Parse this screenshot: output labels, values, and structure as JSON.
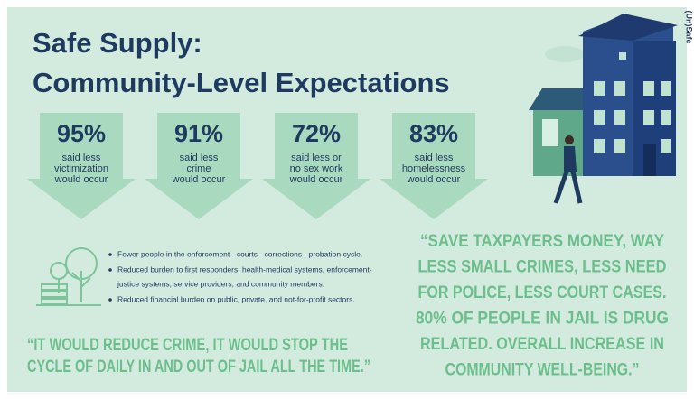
{
  "header": {
    "title": [
      "Safe Supply:",
      "Community-Level Expectations"
    ],
    "side_label": "(Un)Safe"
  },
  "stats": [
    {
      "figure": "95%",
      "caption": [
        "said less",
        "victimization",
        "would occur"
      ]
    },
    {
      "figure": "91%",
      "caption": [
        "said less",
        "crime",
        "would occur"
      ]
    },
    {
      "figure": "72%",
      "caption": [
        "said less or",
        "no sex work",
        "would occur"
      ]
    },
    {
      "figure": "83%",
      "caption": [
        "said less",
        "homelessness",
        "would occur"
      ]
    }
  ],
  "bullets": [
    [
      "Fewer people in the enforcement - courts - corrections - probation cycle."
    ],
    [
      "Reduced burden to first responders, health-medical systems, enforcement-",
      "justice systems, service providers, and community members."
    ],
    [
      "Reduced financial burden on public, private, and not-for-profit sectors."
    ]
  ],
  "quotes": [
    [
      "“IT WOULD REDUCE CRIME, IT WOULD STOP THE",
      "CYCLE OF DAILY IN AND OUT OF JAIL ALL THE TIME.”"
    ],
    [
      "“SAVE TAXPAYERS MONEY, WAY",
      "LESS SMALL CRIMES, LESS NEED",
      "FOR POLICE, LESS COURT CASES.",
      "80% OF PEOPLE IN JAIL IS DRUG",
      "RELATED. OVERALL INCREASE IN",
      "COMMUNITY WELL-BEING.”"
    ]
  ]
}
